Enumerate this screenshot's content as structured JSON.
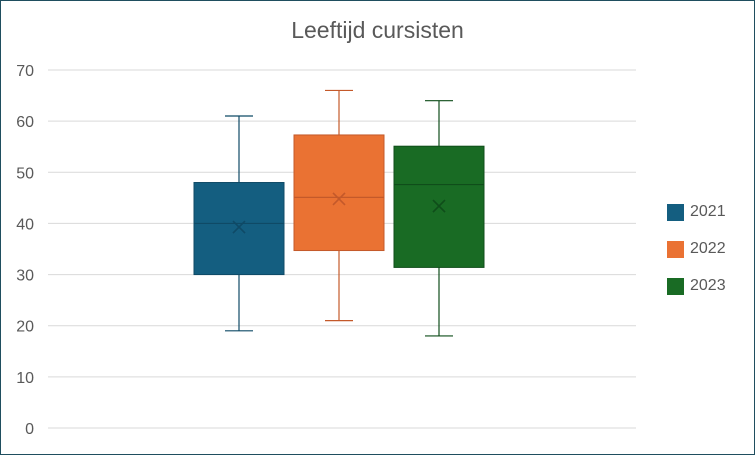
{
  "chart_data": {
    "type": "box",
    "title": "Leeftijd cursisten",
    "xlabel": "",
    "ylabel": "",
    "ylim": [
      0,
      70
    ],
    "yticks": [
      0,
      10,
      20,
      30,
      40,
      50,
      60,
      70
    ],
    "grid": true,
    "legend_position": "right",
    "series": [
      {
        "name": "2021",
        "color": "#145e80",
        "stroke": "#0f4a66",
        "min": 19,
        "q1": 30,
        "median": 40,
        "q3": 48,
        "max": 61,
        "mean": 39.3
      },
      {
        "name": "2022",
        "color": "#ea7233",
        "stroke": "#c4592a",
        "min": 21,
        "q1": 34.7,
        "median": 45.1,
        "q3": 57.3,
        "max": 66,
        "mean": 44.8
      },
      {
        "name": "2023",
        "color": "#196b24",
        "stroke": "#0f4d1a",
        "min": 18,
        "q1": 31.4,
        "median": 47.6,
        "q3": 55.1,
        "max": 64,
        "mean": 43.4
      }
    ]
  }
}
